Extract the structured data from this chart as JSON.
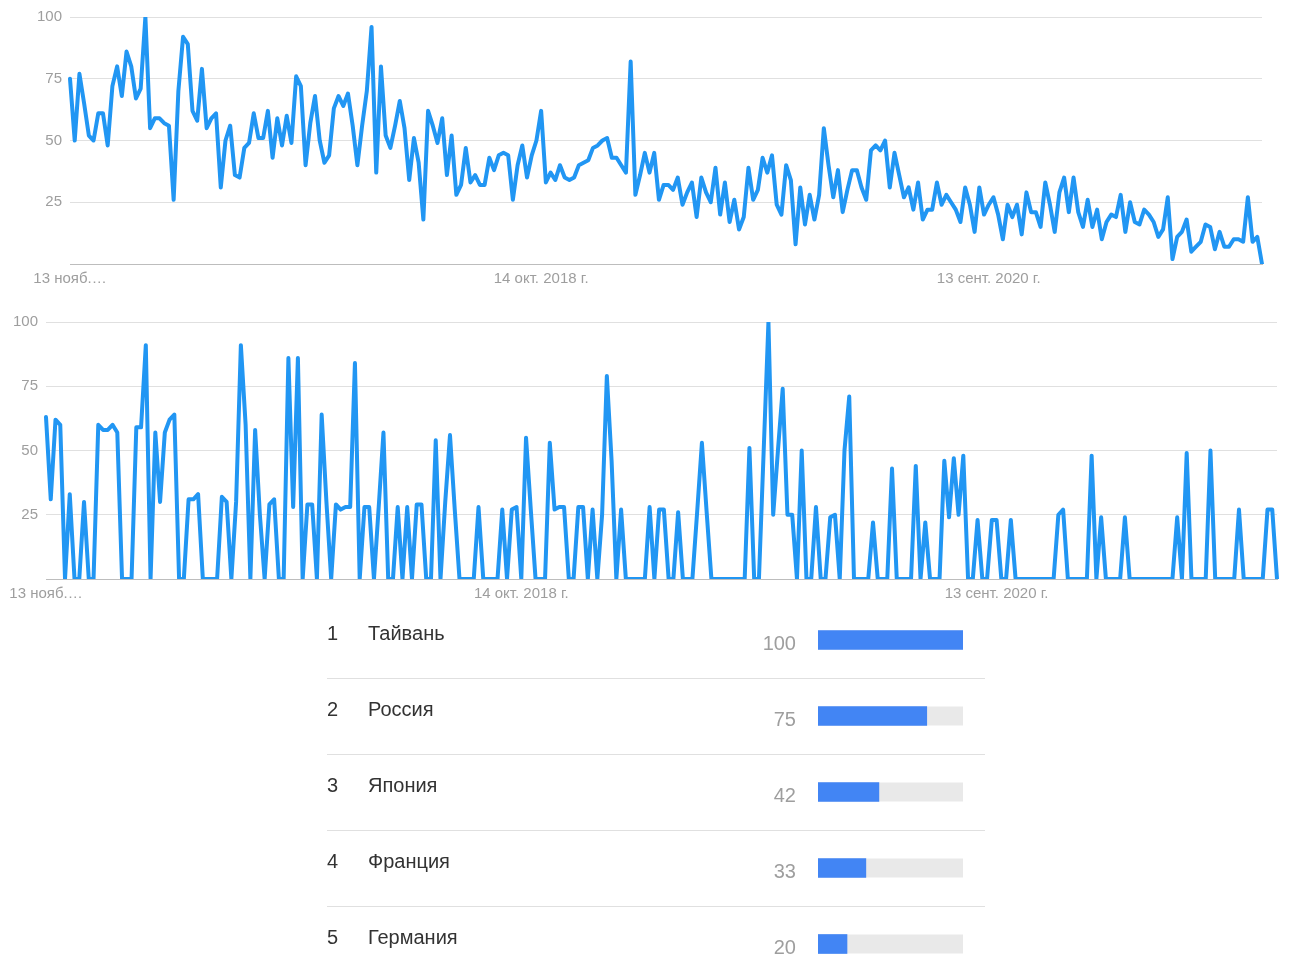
{
  "chart_data": [
    {
      "type": "line",
      "categories": [
        "13 нояб.…",
        null,
        null,
        null,
        null,
        null,
        null,
        null,
        null,
        null,
        null,
        null,
        null,
        null,
        null,
        null,
        null,
        null,
        null,
        null,
        null,
        null,
        null,
        null,
        null,
        null,
        null,
        null,
        null,
        null,
        null,
        null,
        null,
        null,
        null,
        null,
        null,
        null,
        null,
        null,
        null,
        null,
        null,
        null,
        null,
        null,
        null,
        null,
        null,
        null,
        null,
        null,
        null,
        null,
        null,
        null,
        null,
        null,
        null,
        null,
        null,
        null,
        null,
        null,
        null,
        null,
        null,
        null,
        null,
        null,
        null,
        null,
        null,
        null,
        null,
        null,
        null,
        null,
        null,
        null,
        null,
        null,
        null,
        null,
        null,
        null,
        null,
        null,
        null,
        null,
        null,
        null,
        null,
        null,
        null,
        null,
        null,
        null,
        null,
        null,
        "14 окт. 2018 г.",
        null,
        null,
        null,
        null,
        null,
        null,
        null,
        null,
        null,
        null,
        null,
        null,
        null,
        null,
        null,
        null,
        null,
        null,
        null,
        null,
        null,
        null,
        null,
        null,
        null,
        null,
        null,
        null,
        null,
        null,
        null,
        null,
        null,
        null,
        null,
        null,
        null,
        null,
        null,
        null,
        null,
        null,
        null,
        null,
        null,
        null,
        null,
        null,
        null,
        null,
        null,
        null,
        null,
        null,
        null,
        null,
        null,
        null,
        null,
        null,
        null,
        null,
        null,
        null,
        null,
        null,
        null,
        null,
        null,
        null,
        null,
        null,
        null,
        null,
        null,
        null,
        null,
        null,
        null,
        null,
        null,
        null,
        null,
        null,
        null,
        null,
        null,
        null,
        null,
        null,
        null,
        null,
        null,
        null,
        "13 сент. 2020 г.",
        null,
        null,
        null,
        null,
        null,
        null,
        null,
        null,
        null,
        null,
        null,
        null,
        null,
        null,
        null,
        null,
        null,
        null,
        null,
        null,
        null,
        null,
        null,
        null,
        null,
        null,
        null,
        null,
        null,
        null,
        null,
        null,
        null,
        null,
        null,
        null,
        null,
        null,
        null,
        null,
        null,
        null,
        null,
        null,
        null,
        null,
        null,
        null,
        null,
        null,
        null,
        null,
        null,
        null,
        null,
        null,
        null,
        null
      ],
      "values": [
        75,
        50,
        77,
        65,
        52,
        50,
        61,
        61,
        48,
        72,
        80,
        68,
        86,
        80,
        67,
        71,
        100,
        55,
        59,
        59,
        57,
        56,
        26,
        70,
        92,
        89,
        62,
        58,
        79,
        55,
        59,
        61,
        31,
        50,
        56,
        36,
        35,
        47,
        49,
        61,
        51,
        51,
        62,
        43,
        59,
        48,
        60,
        49,
        76,
        72,
        40,
        57,
        68,
        50,
        41,
        44,
        63,
        68,
        64,
        69,
        56,
        40,
        56,
        70,
        96,
        37,
        80,
        52,
        47,
        56,
        66,
        55,
        34,
        51,
        41,
        18,
        62,
        56,
        49,
        59,
        36,
        52,
        28,
        32,
        47,
        33,
        36,
        32,
        32,
        43,
        38,
        44,
        45,
        44,
        26,
        40,
        48,
        35,
        44,
        50,
        62,
        33,
        37,
        34,
        40,
        35,
        34,
        35,
        40,
        41,
        42,
        47,
        48,
        50,
        51,
        43,
        43,
        40,
        37,
        82,
        28,
        36,
        45,
        37,
        45,
        26,
        32,
        32,
        30,
        35,
        24,
        29,
        33,
        19,
        35,
        29,
        25,
        39,
        20,
        33,
        17,
        26,
        14,
        19,
        39,
        26,
        30,
        43,
        37,
        44,
        24,
        20,
        40,
        34,
        8,
        31,
        16,
        28,
        18,
        28,
        55,
        40,
        27,
        38,
        21,
        30,
        38,
        38,
        31,
        26,
        46,
        48,
        46,
        50,
        31,
        45,
        36,
        27,
        31,
        22,
        33,
        18,
        22,
        22,
        33,
        24,
        28,
        25,
        22,
        17,
        31,
        24,
        13,
        31,
        20,
        24,
        27,
        20,
        10,
        24,
        19,
        24,
        12,
        29,
        21,
        21,
        15,
        33,
        24,
        13,
        29,
        35,
        21,
        35,
        21,
        15,
        26,
        15,
        22,
        10,
        17,
        20,
        19,
        28,
        13,
        25,
        17,
        16,
        22,
        20,
        17,
        11,
        14,
        27,
        2,
        11,
        13,
        18,
        5,
        7,
        9,
        16,
        15,
        6,
        13,
        7,
        7,
        10,
        10,
        9,
        27,
        9,
        11,
        0
      ],
      "color": "#2196f3",
      "ylim": [
        0,
        100
      ],
      "yticks": [
        25,
        50,
        75,
        100
      ],
      "grid": "y",
      "marker": "none",
      "line_style": "solid"
    },
    {
      "type": "line",
      "categories": [
        "13 нояб.…",
        null,
        null,
        null,
        null,
        null,
        null,
        null,
        null,
        null,
        null,
        null,
        null,
        null,
        null,
        null,
        null,
        null,
        null,
        null,
        null,
        null,
        null,
        null,
        null,
        null,
        null,
        null,
        null,
        null,
        null,
        null,
        null,
        null,
        null,
        null,
        null,
        null,
        null,
        null,
        null,
        null,
        null,
        null,
        null,
        null,
        null,
        null,
        null,
        null,
        null,
        null,
        null,
        null,
        null,
        null,
        null,
        null,
        null,
        null,
        null,
        null,
        null,
        null,
        null,
        null,
        null,
        null,
        null,
        null,
        null,
        null,
        null,
        null,
        null,
        null,
        null,
        null,
        null,
        null,
        null,
        null,
        null,
        null,
        null,
        null,
        null,
        null,
        null,
        null,
        null,
        null,
        null,
        null,
        null,
        null,
        null,
        null,
        null,
        null,
        "14 окт. 2018 г.",
        null,
        null,
        null,
        null,
        null,
        null,
        null,
        null,
        null,
        null,
        null,
        null,
        null,
        null,
        null,
        null,
        null,
        null,
        null,
        null,
        null,
        null,
        null,
        null,
        null,
        null,
        null,
        null,
        null,
        null,
        null,
        null,
        null,
        null,
        null,
        null,
        null,
        null,
        null,
        null,
        null,
        null,
        null,
        null,
        null,
        null,
        null,
        null,
        null,
        null,
        null,
        null,
        null,
        null,
        null,
        null,
        null,
        null,
        null,
        null,
        null,
        null,
        null,
        null,
        null,
        null,
        null,
        null,
        null,
        null,
        null,
        null,
        null,
        null,
        null,
        null,
        null,
        null,
        null,
        null,
        null,
        null,
        null,
        null,
        null,
        null,
        null,
        null,
        null,
        null,
        null,
        null,
        null,
        null,
        null,
        null,
        null,
        null,
        null,
        "13 сент. 2020 г.",
        null,
        null,
        null,
        null,
        null,
        null,
        null,
        null,
        null,
        null,
        null,
        null,
        null,
        null,
        null,
        null,
        null,
        null,
        null,
        null,
        null,
        null,
        null,
        null,
        null,
        null,
        null,
        null,
        null,
        null,
        null,
        null,
        null,
        null,
        null,
        null,
        null,
        null,
        null,
        null,
        null,
        null,
        null,
        null,
        null,
        null,
        null,
        null,
        null,
        null,
        null,
        null,
        null,
        null,
        null,
        null,
        null,
        null,
        null
      ],
      "values": [
        63,
        31,
        62,
        60,
        0,
        33,
        0,
        0,
        30,
        0,
        0,
        60,
        58,
        58,
        60,
        57,
        0,
        0,
        0,
        59,
        59,
        91,
        0,
        57,
        30,
        57,
        62,
        64,
        0,
        0,
        31,
        31,
        33,
        0,
        0,
        0,
        0,
        32,
        30,
        0,
        30,
        91,
        60,
        0,
        58,
        25,
        0,
        29,
        31,
        0,
        0,
        86,
        28,
        86,
        0,
        29,
        29,
        0,
        64,
        30,
        0,
        29,
        27,
        28,
        28,
        84,
        0,
        28,
        28,
        0,
        28,
        57,
        0,
        0,
        28,
        0,
        28,
        0,
        29,
        29,
        0,
        0,
        54,
        0,
        30,
        56,
        27,
        0,
        0,
        0,
        0,
        28,
        0,
        0,
        0,
        0,
        27,
        0,
        27,
        28,
        0,
        55,
        27,
        0,
        0,
        0,
        53,
        27,
        28,
        28,
        0,
        0,
        28,
        28,
        0,
        27,
        0,
        25,
        79,
        46,
        0,
        27,
        0,
        0,
        0,
        0,
        0,
        28,
        0,
        27,
        27,
        0,
        0,
        26,
        0,
        0,
        0,
        26,
        53,
        26,
        0,
        0,
        0,
        0,
        0,
        0,
        0,
        0,
        51,
        0,
        0,
        50,
        100,
        25,
        50,
        74,
        25,
        25,
        0,
        50,
        0,
        0,
        28,
        0,
        0,
        24,
        25,
        0,
        50,
        71,
        0,
        0,
        0,
        0,
        22,
        0,
        0,
        0,
        43,
        0,
        0,
        0,
        0,
        44,
        0,
        22,
        0,
        0,
        0,
        46,
        24,
        47,
        25,
        48,
        0,
        0,
        23,
        0,
        0,
        23,
        23,
        0,
        0,
        23,
        0,
        0,
        0,
        0,
        0,
        0,
        0,
        0,
        0,
        25,
        27,
        0,
        0,
        0,
        0,
        0,
        48,
        0,
        24,
        0,
        0,
        0,
        0,
        24,
        0,
        0,
        0,
        0,
        0,
        0,
        0,
        0,
        0,
        0,
        24,
        0,
        49,
        0,
        0,
        0,
        0,
        50,
        0,
        0,
        0,
        0,
        0,
        27,
        0,
        0,
        0,
        0,
        0,
        27,
        27,
        0
      ],
      "color": "#2196f3",
      "ylim": [
        0,
        100
      ],
      "yticks": [
        25,
        50,
        75,
        100
      ],
      "grid": "y",
      "marker": "none",
      "line_style": "solid"
    },
    {
      "type": "bar",
      "orientation": "horizontal",
      "categories": [
        "Тайвань",
        "Россия",
        "Япония",
        "Франция",
        "Германия"
      ],
      "values": [
        100,
        75,
        42,
        33,
        20
      ],
      "color": "#4285f4",
      "xlim": [
        0,
        100
      ],
      "data_labels": true,
      "annotations": [
        "1",
        "2",
        "3",
        "4",
        "5"
      ]
    }
  ]
}
